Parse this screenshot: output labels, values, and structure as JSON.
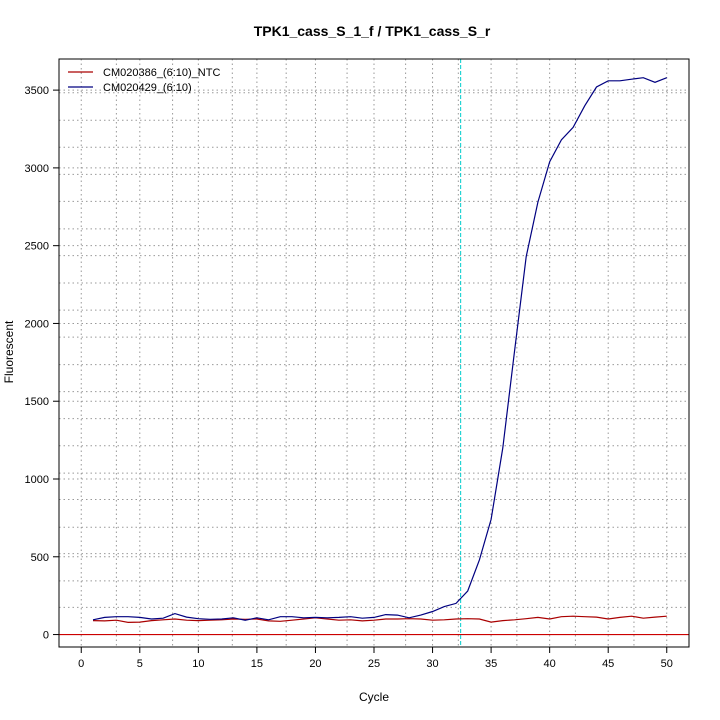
{
  "chart_data": {
    "type": "line",
    "title": "TPK1_cass_S_1_f / TPK1_cass_S_r",
    "xlabel": "Cycle",
    "ylabel": "Fluorescent",
    "xlim": [
      -1.9,
      51.9
    ],
    "ylim": [
      -80,
      3700
    ],
    "x_ticks": [
      0,
      5,
      10,
      15,
      20,
      25,
      30,
      35,
      40,
      45,
      50
    ],
    "y_ticks": [
      0,
      500,
      1000,
      1500,
      2000,
      2500,
      3000,
      3500
    ],
    "x_minor_gridlines": [
      3,
      7.8,
      12.9,
      17.5,
      22.7,
      27.7,
      32.2,
      37.2,
      42.2,
      47.2
    ],
    "y_minor_gridlines": [
      175,
      345,
      520,
      690,
      868,
      1038,
      1214,
      1388,
      1562,
      1735,
      1912,
      2086,
      2260,
      2436,
      2608,
      2785,
      2958,
      3133,
      3306,
      3483
    ],
    "threshold": 0,
    "threshold_color": "#cc0000",
    "cycle_marker": 32.4,
    "cycle_marker_color": "#00cccc",
    "grid": true,
    "legend_position": "top-left",
    "x": [
      1,
      2,
      3,
      4,
      5,
      6,
      7,
      8,
      9,
      10,
      11,
      12,
      13,
      14,
      15,
      16,
      17,
      18,
      19,
      20,
      21,
      22,
      23,
      24,
      25,
      26,
      27,
      28,
      29,
      30,
      31,
      32,
      33,
      34,
      35,
      36,
      37,
      38,
      39,
      40,
      41,
      42,
      43,
      44,
      45,
      46,
      47,
      48,
      49,
      50
    ],
    "series": [
      {
        "name": "CM020386_(6:10)_NTC",
        "color": "#aa0000",
        "values": [
          90,
          88,
          92,
          78,
          80,
          90,
          95,
          100,
          92,
          90,
          92,
          95,
          100,
          98,
          100,
          88,
          85,
          92,
          100,
          108,
          100,
          92,
          95,
          88,
          92,
          100,
          100,
          102,
          100,
          92,
          95,
          100,
          102,
          100,
          80,
          90,
          95,
          102,
          110,
          100,
          115,
          118,
          115,
          112,
          100,
          110,
          118,
          105,
          112,
          118
        ]
      },
      {
        "name": "CM020429_(6:10)",
        "color": "#000080",
        "values": [
          95,
          110,
          115,
          115,
          110,
          100,
          105,
          135,
          112,
          102,
          98,
          100,
          108,
          92,
          108,
          95,
          115,
          115,
          108,
          110,
          108,
          110,
          115,
          105,
          110,
          128,
          125,
          108,
          125,
          148,
          180,
          200,
          280,
          480,
          740,
          1200,
          1820,
          2430,
          2780,
          3040,
          3180,
          3260,
          3400,
          3520,
          3560,
          3560,
          3570,
          3580,
          3550,
          3580
        ]
      }
    ]
  }
}
